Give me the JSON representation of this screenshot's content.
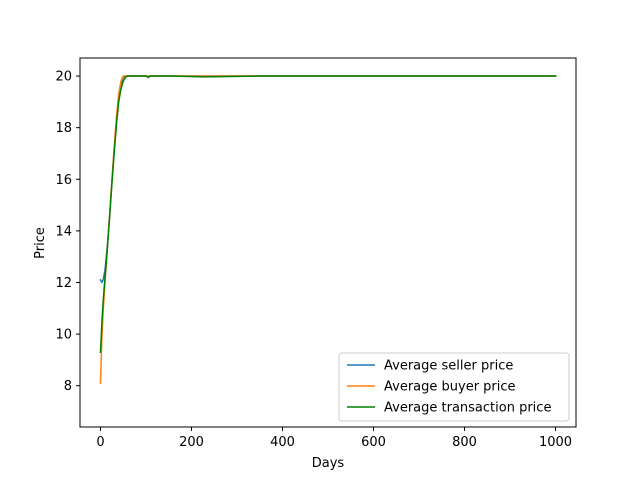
{
  "chart_data": {
    "type": "line",
    "title": "",
    "xlabel": "Days",
    "ylabel": "Price",
    "xlim": [
      -45,
      1045
    ],
    "ylim": [
      6.4,
      20.7
    ],
    "xticks": [
      0,
      200,
      400,
      600,
      800,
      1000
    ],
    "yticks": [
      8,
      10,
      12,
      14,
      16,
      18,
      20
    ],
    "grid": false,
    "legend_position": "lower right",
    "series": [
      {
        "name": "Average seller price",
        "color": "#1f77b4",
        "x": [
          0,
          3,
          6,
          10,
          15,
          20,
          25,
          30,
          35,
          40,
          45,
          50,
          55,
          60,
          100,
          200,
          400,
          600,
          800,
          1000
        ],
        "y": [
          12.1,
          12.0,
          12.1,
          12.5,
          13.4,
          14.6,
          15.9,
          17.1,
          18.2,
          19.1,
          19.7,
          19.95,
          20.0,
          20.0,
          20.0,
          20.0,
          20.0,
          20.0,
          20.0,
          20.0
        ]
      },
      {
        "name": "Average buyer price",
        "color": "#ff7f0e",
        "x": [
          0,
          3,
          6,
          10,
          15,
          20,
          25,
          30,
          35,
          40,
          45,
          50,
          55,
          60,
          100,
          200,
          400,
          600,
          800,
          1000
        ],
        "y": [
          8.1,
          9.8,
          10.9,
          12.0,
          13.3,
          14.6,
          15.9,
          17.2,
          18.4,
          19.3,
          19.8,
          20.0,
          20.0,
          20.0,
          20.0,
          20.0,
          20.0,
          20.0,
          20.0,
          20.0
        ]
      },
      {
        "name": "Average transaction price",
        "color": "#008000",
        "x": [
          0,
          3,
          6,
          10,
          15,
          20,
          25,
          30,
          35,
          40,
          45,
          50,
          55,
          60,
          100,
          105,
          110,
          150,
          230,
          350,
          600,
          800,
          1000
        ],
        "y": [
          9.3,
          10.4,
          11.3,
          12.2,
          13.3,
          14.5,
          15.8,
          17.0,
          18.1,
          19.0,
          19.5,
          19.8,
          19.95,
          20.0,
          20.0,
          19.95,
          20.0,
          20.0,
          19.97,
          20.0,
          20.0,
          20.0,
          20.0
        ]
      }
    ]
  }
}
